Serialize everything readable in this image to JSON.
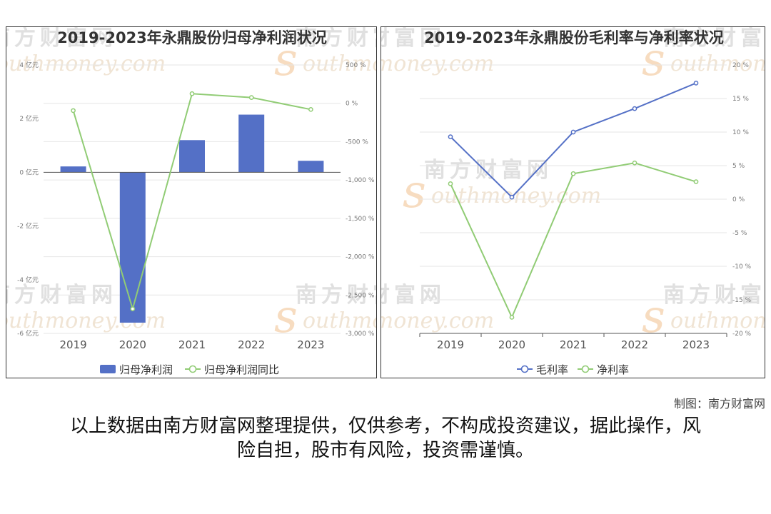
{
  "watermark": {
    "cn": "南方财富网",
    "en": "outhmoney.com",
    "s": "s"
  },
  "credit": "制图：南方财富网",
  "disclaimer_lines": [
    "以上数据由南方财富网整理提供，仅供参考，不构成投资建议，据此操作，风",
    "险自担，股市有风险，投资需谨慎。"
  ],
  "chart_data": [
    {
      "type": "bar+line",
      "title": "2019-2023年永鼎股份归母净利润状况",
      "categories": [
        "2019",
        "2020",
        "2021",
        "2022",
        "2023"
      ],
      "series": [
        {
          "name": "归母净利润",
          "type": "bar",
          "axis": "left",
          "color": "#5470c6",
          "values": [
            0.22,
            -5.6,
            1.2,
            2.15,
            0.43
          ]
        },
        {
          "name": "归母净利润同比",
          "type": "line",
          "axis": "right",
          "color": "#91cc75",
          "values": [
            -95,
            -2680,
            125,
            75,
            -80
          ]
        }
      ],
      "y_left": {
        "min": -6,
        "max": 4,
        "step": 2,
        "unit": "亿元",
        "ticks": [
          "4 亿元",
          "2 亿元",
          "0 亿元",
          "-2 亿元",
          "-4 亿元",
          "-6 亿元"
        ]
      },
      "y_right": {
        "min": -3000,
        "max": 500,
        "step": 500,
        "unit": "%",
        "ticks": [
          "500 %",
          "0 %",
          "-500 %",
          "-1,000 %",
          "-1,500 %",
          "-2,000 %",
          "-2,500 %",
          "-3,000 %"
        ]
      },
      "legend_position": "bottom",
      "grid": true
    },
    {
      "type": "line",
      "title": "2019-2023年永鼎股份毛利率与净利率状况",
      "categories": [
        "2019",
        "2020",
        "2021",
        "2022",
        "2023"
      ],
      "series": [
        {
          "name": "毛利率",
          "color": "#5470c6",
          "values": [
            9.3,
            0.3,
            10.0,
            13.5,
            17.3
          ]
        },
        {
          "name": "净利率",
          "color": "#91cc75",
          "values": [
            2.3,
            -17.6,
            3.8,
            5.4,
            2.6
          ]
        }
      ],
      "y_right": {
        "min": -20,
        "max": 20,
        "step": 5,
        "unit": "%",
        "ticks": [
          "20 %",
          "15 %",
          "10 %",
          "5 %",
          "0 %",
          "-5 %",
          "-10 %",
          "-15 %",
          "-20 %"
        ]
      },
      "legend_position": "bottom",
      "grid": true
    }
  ]
}
